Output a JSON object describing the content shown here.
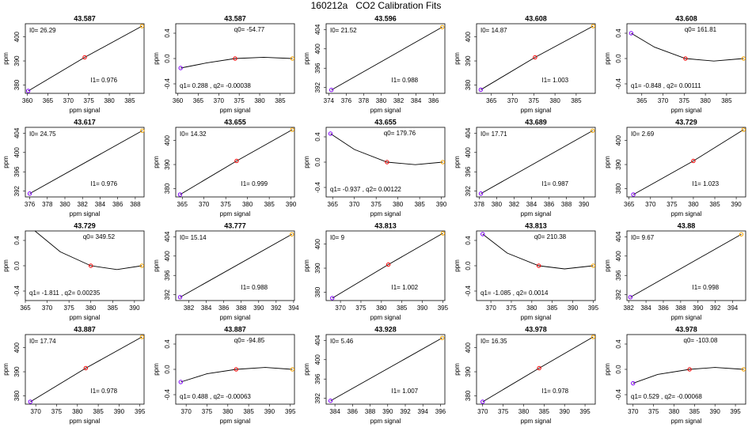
{
  "title": "160212a   CO2 Calibration Fits",
  "chart_data": [
    {
      "type": "scatter",
      "title": "43.587",
      "xlabel": "ppm signal",
      "ylabel": "ppm",
      "annotations": [
        "I0= 26.29",
        "I1= 0.976"
      ],
      "x": [
        360.2,
        374,
        388
      ],
      "y": [
        377.5,
        391.5,
        404.5
      ],
      "colors": [
        "#8000ff",
        "#ff0000",
        "#ffa500"
      ],
      "xlim": [
        359.5,
        388.5
      ],
      "ylim": [
        376.5,
        405.5
      ],
      "xticks": [
        360,
        365,
        370,
        375,
        380,
        385
      ],
      "yticks": [
        380,
        390,
        400
      ]
    },
    {
      "type": "scatter",
      "title": "43.587",
      "xlabel": "ppm signal",
      "ylabel": "ppm",
      "annotations": [
        "q0= -54.77",
        "q1= 0.288 , q2= -0.00038"
      ],
      "x": [
        360.7,
        374,
        388
      ],
      "y": [
        -0.15,
        0,
        0
      ],
      "colors": [
        "#8000ff",
        "#ff0000",
        "#ffa500"
      ],
      "fit": {
        "x": [
          360.7,
          367,
          374,
          381,
          388
        ],
        "y": [
          -0.15,
          -0.07,
          0,
          0.02,
          0
        ]
      },
      "xlim": [
        359.5,
        388.5
      ],
      "ylim": [
        -0.55,
        0.55
      ],
      "xticks": [
        360,
        365,
        370,
        375,
        380,
        385
      ],
      "yticks": [
        -0.4,
        {
          "value": 0,
          "label": "0.0"
        },
        0.4
      ]
    },
    {
      "type": "scatter",
      "title": "43.596",
      "xlabel": "ppm signal",
      "ylabel": "ppm",
      "annotations": [
        "I0= 21.52",
        "I1= 0.988"
      ],
      "x": [
        374.3,
        387
      ],
      "y": [
        391.5,
        404.5
      ],
      "colors": [
        "#8000ff",
        "#ffa500"
      ],
      "xlim": [
        373.7,
        387.3
      ],
      "ylim": [
        390.8,
        405.2
      ],
      "xticks": [
        374,
        376,
        378,
        380,
        382,
        384,
        386
      ],
      "yticks": [
        392,
        396,
        400,
        404
      ]
    },
    {
      "type": "scatter",
      "title": "43.608",
      "xlabel": "ppm signal",
      "ylabel": "ppm",
      "annotations": [
        "I0= 14.87",
        "I1= 1.003"
      ],
      "x": [
        362.5,
        375.3,
        389
      ],
      "y": [
        378,
        391.5,
        404.5
      ],
      "colors": [
        "#8000ff",
        "#ff0000",
        "#ffa500"
      ],
      "xlim": [
        361.5,
        389.5
      ],
      "ylim": [
        376.5,
        405.5
      ],
      "xticks": [
        365,
        370,
        375,
        380,
        385
      ],
      "yticks": [
        380,
        390,
        400
      ]
    },
    {
      "type": "scatter",
      "title": "43.608",
      "xlabel": "ppm signal",
      "ylabel": "ppm",
      "annotations": [
        "q0= 161.81",
        "q1= -0.848 , q2= 0.00111"
      ],
      "x": [
        362.5,
        375.3,
        389
      ],
      "y": [
        0.4,
        0,
        0
      ],
      "colors": [
        "#8000ff",
        "#ff0000",
        "#ffa500"
      ],
      "fit": {
        "x": [
          362.5,
          368,
          375.3,
          382,
          389
        ],
        "y": [
          0.4,
          0.18,
          0,
          -0.04,
          0
        ]
      },
      "xlim": [
        361.5,
        389.5
      ],
      "ylim": [
        -0.55,
        0.55
      ],
      "xticks": [
        365,
        370,
        375,
        380,
        385
      ],
      "yticks": [
        -0.4,
        {
          "value": 0,
          "label": "0.0"
        },
        0.4
      ]
    },
    {
      "type": "scatter",
      "title": "43.617",
      "xlabel": "ppm signal",
      "ylabel": "ppm",
      "annotations": [
        "I0= 24.75",
        "I1= 0.976"
      ],
      "x": [
        376,
        388.8
      ],
      "y": [
        391.5,
        404.5
      ],
      "colors": [
        "#8000ff",
        "#ffa500"
      ],
      "xlim": [
        375.5,
        389
      ],
      "ylim": [
        390.8,
        405.2
      ],
      "xticks": [
        376,
        378,
        380,
        382,
        384,
        386,
        388
      ],
      "yticks": [
        392,
        396,
        400,
        404
      ]
    },
    {
      "type": "scatter",
      "title": "43.655",
      "xlabel": "ppm signal",
      "ylabel": "ppm",
      "annotations": [
        "I0= 14.32",
        "I1= 0.999"
      ],
      "x": [
        364.5,
        377.5,
        390.3
      ],
      "y": [
        377.5,
        391.5,
        404.5
      ],
      "colors": [
        "#8000ff",
        "#ff0000",
        "#ffa500"
      ],
      "xlim": [
        363.5,
        390.8
      ],
      "ylim": [
        376.5,
        405.5
      ],
      "xticks": [
        365,
        370,
        375,
        380,
        385,
        390
      ],
      "yticks": [
        380,
        390,
        400
      ]
    },
    {
      "type": "scatter",
      "title": "43.655",
      "xlabel": "ppm signal",
      "ylabel": "ppm",
      "annotations": [
        "q0= 179.76",
        "q1= -0.937 , q2= 0.00122"
      ],
      "x": [
        364.5,
        377.5,
        390.3
      ],
      "y": [
        0.45,
        0,
        0
      ],
      "colors": [
        "#8000ff",
        "#ff0000",
        "#ffa500"
      ],
      "fit": {
        "x": [
          364.5,
          370,
          377.5,
          384,
          390.3
        ],
        "y": [
          0.45,
          0.2,
          0,
          -0.04,
          0
        ]
      },
      "xlim": [
        363.5,
        390.8
      ],
      "ylim": [
        -0.55,
        0.55
      ],
      "xticks": [
        365,
        370,
        375,
        380,
        385,
        390
      ],
      "yticks": [
        -0.4,
        {
          "value": 0,
          "label": "0.0"
        },
        0.4
      ]
    },
    {
      "type": "scatter",
      "title": "43.689",
      "xlabel": "ppm signal",
      "ylabel": "ppm",
      "annotations": [
        "I0= 17.71",
        "I1= 0.987"
      ],
      "x": [
        378.2,
        391
      ],
      "y": [
        391.5,
        404.5
      ],
      "colors": [
        "#8000ff",
        "#ffa500"
      ],
      "xlim": [
        377.7,
        391.3
      ],
      "ylim": [
        390.8,
        405.2
      ],
      "xticks": [
        378,
        380,
        382,
        384,
        386,
        388,
        390
      ],
      "yticks": [
        392,
        396,
        400,
        404
      ]
    },
    {
      "type": "scatter",
      "title": "43.729",
      "xlabel": "ppm signal",
      "ylabel": "ppm",
      "annotations": [
        "I0= 2.69",
        "I1= 1.023"
      ],
      "x": [
        366,
        380,
        391.7
      ],
      "y": [
        377.5,
        391.5,
        404.5
      ],
      "colors": [
        "#8000ff",
        "#ff0000",
        "#ffa500"
      ],
      "xlim": [
        364.5,
        392.2
      ],
      "ylim": [
        376.5,
        405.5
      ],
      "xticks": [
        365,
        370,
        375,
        380,
        385,
        390
      ],
      "yticks": [
        380,
        390,
        400
      ]
    },
    {
      "type": "scatter",
      "title": "43.729",
      "xlabel": "ppm signal",
      "ylabel": "ppm",
      "annotations": [
        "q0= 349.52",
        "q1= -1.811 , q2= 0.00235"
      ],
      "x": [
        380,
        391.7
      ],
      "y": [
        0,
        0
      ],
      "colors": [
        "#ff0000",
        "#ffa500"
      ],
      "fit": {
        "x": [
          367.2,
          373,
          380,
          386,
          391.7
        ],
        "y": [
          0.55,
          0.22,
          0,
          -0.06,
          0
        ]
      },
      "xlim": [
        365,
        392.2
      ],
      "ylim": [
        -0.55,
        0.55
      ],
      "xticks": [
        365,
        370,
        375,
        380,
        385,
        390
      ],
      "yticks": [
        -0.4,
        {
          "value": 0,
          "label": "0.0"
        },
        0.4
      ]
    },
    {
      "type": "scatter",
      "title": "43.777",
      "xlabel": "ppm signal",
      "ylabel": "ppm",
      "annotations": [
        "I0= 15.14",
        "I1= 0.988"
      ],
      "x": [
        381,
        393.8
      ],
      "y": [
        391.5,
        404.5
      ],
      "colors": [
        "#8000ff",
        "#ffa500"
      ],
      "xlim": [
        380.5,
        394.1
      ],
      "ylim": [
        390.8,
        405.2
      ],
      "xticks": [
        382,
        384,
        386,
        388,
        390,
        392,
        394
      ],
      "yticks": [
        392,
        396,
        400,
        404
      ]
    },
    {
      "type": "scatter",
      "title": "43.813",
      "xlabel": "ppm signal",
      "ylabel": "ppm",
      "annotations": [
        "I0= 9",
        "I1= 1.002"
      ],
      "x": [
        368,
        381.7,
        395
      ],
      "y": [
        377.5,
        391.5,
        404.5
      ],
      "colors": [
        "#8000ff",
        "#ff0000",
        "#ffa500"
      ],
      "xlim": [
        366.5,
        395.5
      ],
      "ylim": [
        376.5,
        405.5
      ],
      "xticks": [
        370,
        375,
        380,
        385,
        390,
        395
      ],
      "yticks": [
        380,
        390,
        400
      ]
    },
    {
      "type": "scatter",
      "title": "43.813",
      "xlabel": "ppm signal",
      "ylabel": "ppm",
      "annotations": [
        "q0= 210.38",
        "q1= -1.085 , q2= 0.0014"
      ],
      "x": [
        368,
        381.7,
        395
      ],
      "y": [
        0.5,
        0,
        0
      ],
      "colors": [
        "#8000ff",
        "#ff0000",
        "#ffa500"
      ],
      "fit": {
        "x": [
          368,
          374,
          381.7,
          388,
          395
        ],
        "y": [
          0.5,
          0.2,
          0,
          -0.05,
          0
        ]
      },
      "xlim": [
        366.5,
        395.5
      ],
      "ylim": [
        -0.55,
        0.55
      ],
      "xticks": [
        370,
        375,
        380,
        385,
        390,
        395
      ],
      "yticks": [
        -0.4,
        {
          "value": 0,
          "label": "0.0"
        },
        0.4
      ]
    },
    {
      "type": "scatter",
      "title": "43.88",
      "xlabel": "ppm signal",
      "ylabel": "ppm",
      "annotations": [
        "I0= 9.67",
        "I1= 0.998"
      ],
      "x": [
        382.2,
        395
      ],
      "y": [
        391.5,
        404.5
      ],
      "colors": [
        "#8000ff",
        "#ffa500"
      ],
      "xlim": [
        381.8,
        395.5
      ],
      "ylim": [
        390.8,
        405.2
      ],
      "xticks": [
        382,
        384,
        386,
        388,
        390,
        392,
        394
      ],
      "yticks": [
        392,
        396,
        400,
        404
      ]
    },
    {
      "type": "scatter",
      "title": "43.887",
      "xlabel": "ppm signal",
      "ylabel": "ppm",
      "annotations": [
        "I0= 17.74",
        "I1= 0.978"
      ],
      "x": [
        368.7,
        382,
        395.5
      ],
      "y": [
        377.5,
        391.5,
        404.5
      ],
      "colors": [
        "#8000ff",
        "#ff0000",
        "#ffa500"
      ],
      "xlim": [
        367.5,
        396
      ],
      "ylim": [
        376.5,
        405.5
      ],
      "xticks": [
        370,
        375,
        380,
        385,
        390,
        395
      ],
      "yticks": [
        380,
        390,
        400
      ]
    },
    {
      "type": "scatter",
      "title": "43.887",
      "xlabel": "ppm signal",
      "ylabel": "ppm",
      "annotations": [
        "q0= -94.85",
        "q1= 0.488 , q2= -0.00063"
      ],
      "x": [
        368.7,
        382,
        395.5
      ],
      "y": [
        -0.2,
        0,
        0
      ],
      "colors": [
        "#8000ff",
        "#ff0000",
        "#ffa500"
      ],
      "fit": {
        "x": [
          368.7,
          375,
          382,
          389,
          395.5
        ],
        "y": [
          -0.2,
          -0.07,
          0,
          0.03,
          0
        ]
      },
      "xlim": [
        367.5,
        396
      ],
      "ylim": [
        -0.55,
        0.55
      ],
      "xticks": [
        370,
        375,
        380,
        385,
        390,
        395
      ],
      "yticks": [
        -0.4,
        {
          "value": 0,
          "label": "0.0"
        },
        0.4
      ]
    },
    {
      "type": "scatter",
      "title": "43.928",
      "xlabel": "ppm signal",
      "ylabel": "ppm",
      "annotations": [
        "I0= 5.46",
        "I1= 1.007"
      ],
      "x": [
        383.5,
        396.2
      ],
      "y": [
        391.5,
        404.5
      ],
      "colors": [
        "#8000ff",
        "#ffa500"
      ],
      "xlim": [
        383,
        396.5
      ],
      "ylim": [
        390.8,
        405.2
      ],
      "xticks": [
        384,
        386,
        388,
        390,
        392,
        394,
        396
      ],
      "yticks": [
        392,
        396,
        400,
        404
      ]
    },
    {
      "type": "scatter",
      "title": "43.978",
      "xlabel": "ppm signal",
      "ylabel": "ppm",
      "annotations": [
        "I0= 16.35",
        "I1= 0.978"
      ],
      "x": [
        370,
        383.8,
        397
      ],
      "y": [
        377.5,
        391.5,
        404.5
      ],
      "colors": [
        "#8000ff",
        "#ff0000",
        "#ffa500"
      ],
      "xlim": [
        368.5,
        397.5
      ],
      "ylim": [
        376.5,
        405.5
      ],
      "xticks": [
        370,
        375,
        380,
        385,
        390,
        395
      ],
      "yticks": [
        380,
        390,
        400
      ]
    },
    {
      "type": "scatter",
      "title": "43.978",
      "xlabel": "ppm signal",
      "ylabel": "ppm",
      "annotations": [
        "q0= -103.08",
        "q1= 0.529 , q2= -0.00068"
      ],
      "x": [
        370,
        383.8,
        397
      ],
      "y": [
        -0.22,
        0,
        0
      ],
      "colors": [
        "#8000ff",
        "#ff0000",
        "#ffa500"
      ],
      "fit": {
        "x": [
          370,
          376,
          383.8,
          390,
          397
        ],
        "y": [
          -0.22,
          -0.08,
          0,
          0.03,
          0
        ]
      },
      "xlim": [
        368.5,
        397.5
      ],
      "ylim": [
        -0.55,
        0.55
      ],
      "xticks": [
        370,
        375,
        380,
        385,
        390,
        395
      ],
      "yticks": [
        -0.4,
        {
          "value": 0,
          "label": "0.0"
        },
        0.4
      ]
    }
  ]
}
